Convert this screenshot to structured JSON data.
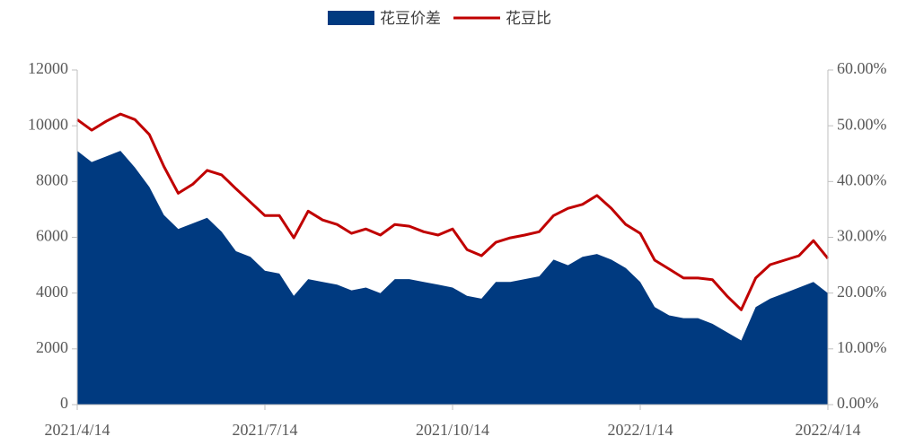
{
  "chart_data": {
    "type": "area_line",
    "categories": [
      "2021/4/14",
      null,
      null,
      null,
      null,
      null,
      null,
      null,
      null,
      null,
      null,
      null,
      null,
      "2021/7/14",
      null,
      null,
      null,
      null,
      null,
      null,
      null,
      null,
      null,
      null,
      null,
      null,
      "2021/10/14",
      null,
      null,
      null,
      null,
      null,
      null,
      null,
      null,
      null,
      null,
      null,
      null,
      "2022/1/14",
      null,
      null,
      null,
      null,
      null,
      null,
      null,
      null,
      null,
      null,
      null,
      null,
      "2022/4/14"
    ],
    "series": [
      {
        "name": "花豆价差",
        "color": "#003a80",
        "type": "area",
        "axis": "y",
        "values": [
          9100,
          8700,
          8900,
          9100,
          8500,
          7800,
          6800,
          6300,
          6500,
          6700,
          6200,
          5500,
          5300,
          4800,
          4700,
          3900,
          4500,
          4400,
          4300,
          4100,
          4200,
          4000,
          4500,
          4500,
          4400,
          4300,
          4200,
          3900,
          3800,
          4400,
          4400,
          4500,
          4600,
          5200,
          5000,
          5300,
          5400,
          5200,
          4900,
          4400,
          3500,
          3200,
          3100,
          3100,
          2900,
          2600,
          2300,
          3500,
          3800,
          4000,
          4200,
          4400,
          4000
        ]
      },
      {
        "name": "花豆比",
        "color": "#c00000",
        "type": "line",
        "axis": "y2",
        "values": [
          51.1,
          49.2,
          50.8,
          52.1,
          51.1,
          48.4,
          42.7,
          37.9,
          39.5,
          42,
          41.2,
          38.7,
          36.3,
          33.9,
          33.9,
          29.9,
          34.7,
          33.1,
          32.3,
          30.7,
          31.5,
          30.4,
          32.3,
          32,
          31,
          30.4,
          31.5,
          27.8,
          26.7,
          29.1,
          29.9,
          30.4,
          31,
          33.9,
          35.2,
          35.9,
          37.5,
          35.2,
          32.3,
          30.7,
          25.9,
          24.3,
          22.7,
          22.7,
          22.4,
          19.5,
          17,
          22.7,
          25.1,
          25.9,
          26.7,
          29.4,
          26.2
        ]
      }
    ],
    "ylim": [
      0,
      12000
    ],
    "yticks": [
      0,
      2000,
      4000,
      6000,
      8000,
      10000,
      12000
    ],
    "y2lim": [
      0,
      60
    ],
    "y2ticks": [
      {
        "value": 0,
        "label": "0.00%"
      },
      {
        "value": 10,
        "label": "10.00%"
      },
      {
        "value": 20,
        "label": "20.00%"
      },
      {
        "value": 30,
        "label": "30.00%"
      },
      {
        "value": 40,
        "label": "40.00%"
      },
      {
        "value": 50,
        "label": "50.00%"
      },
      {
        "value": 60,
        "label": "60.00%"
      }
    ],
    "legend": "top"
  }
}
